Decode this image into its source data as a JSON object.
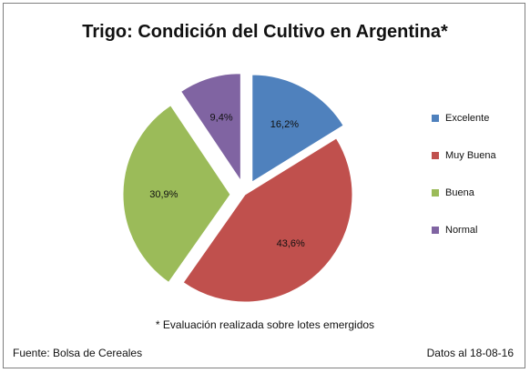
{
  "chart_data": {
    "type": "pie",
    "title": "Trigo: Condición del Cultivo en Argentina*",
    "slices": [
      {
        "label": "Excelente",
        "value": 16.2,
        "value_label": "16,2%",
        "color": "#4f81bd",
        "exploded": true
      },
      {
        "label": "Muy Buena",
        "value": 43.6,
        "value_label": "43,6%",
        "color": "#c0504d",
        "exploded": false
      },
      {
        "label": "Buena",
        "value": 30.9,
        "value_label": "30,9%",
        "color": "#9bbb59",
        "exploded": true
      },
      {
        "label": "Normal",
        "value": 9.4,
        "value_label": "9,4%",
        "color": "#8064a2",
        "exploded": true
      }
    ],
    "legend_position": "right",
    "note": "* Evaluación realizada sobre lotes emergidos",
    "source": "Fuente: Bolsa de Cereales",
    "date": "Datos al 18-08-16"
  }
}
